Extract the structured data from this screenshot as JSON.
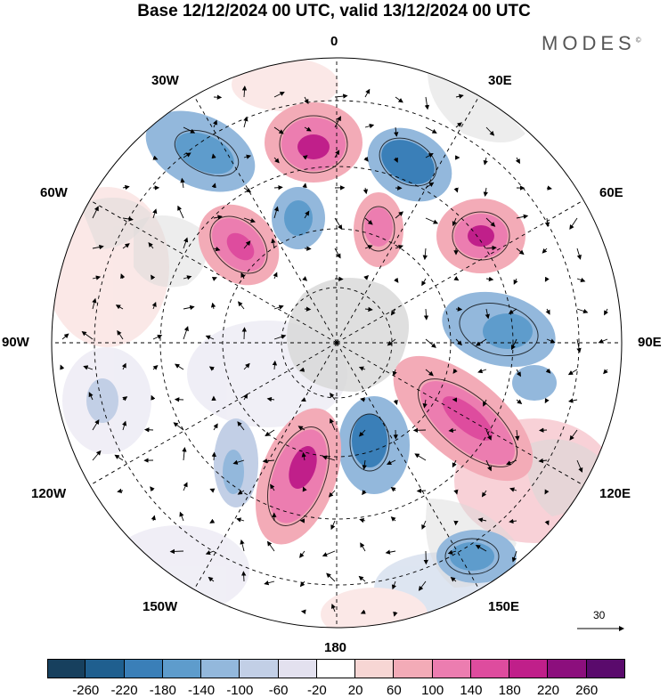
{
  "title": "Base 12/12/2024 00 UTC, valid 13/12/2024 00 UTC",
  "logo": "MODES",
  "logo_mark": "©",
  "longitude_labels": {
    "n0": "0",
    "n30e": "30E",
    "n60e": "60E",
    "n90e": "90E",
    "n120e": "120E",
    "n150e": "150E",
    "n180": "180",
    "n150w": "150W",
    "n120w": "120W",
    "n90w": "90W",
    "n60w": "60W",
    "n30w": "30W"
  },
  "reference_vector": {
    "label": "30"
  },
  "colorbar": {
    "labels": [
      "-260",
      "-220",
      "-180",
      "-140",
      "-100",
      "-60",
      "-20",
      "20",
      "60",
      "100",
      "140",
      "180",
      "220",
      "260"
    ],
    "colors": [
      "#17405e",
      "#1f5f8f",
      "#3a7fb8",
      "#5e9ccc",
      "#93b8dc",
      "#c2cfe6",
      "#e3e1ef",
      "#ffffff",
      "#f7d6d4",
      "#f3abb7",
      "#ec7db0",
      "#de4c9e",
      "#c01f8a",
      "#8c0f7d",
      "#5a0a6c"
    ]
  },
  "map_colors": {
    "land": "#d8d8d8",
    "positive": "#de4c9e",
    "negative": "#3a7fb8"
  }
}
